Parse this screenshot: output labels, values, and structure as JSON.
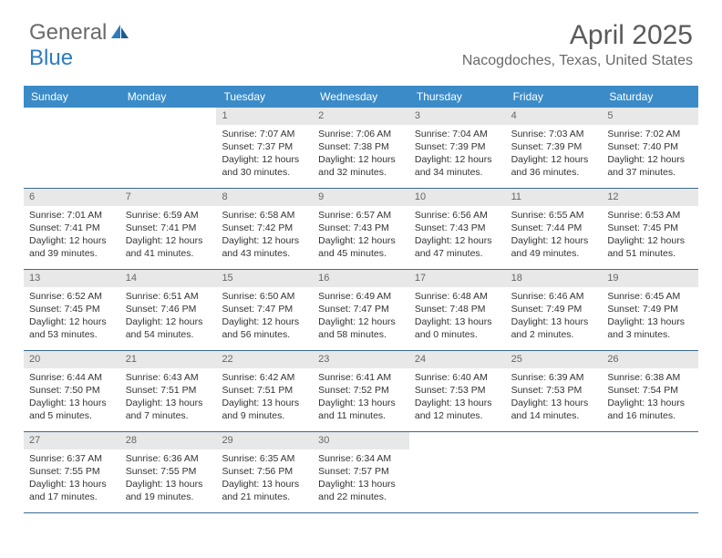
{
  "brand": {
    "text1": "General",
    "text2": "Blue"
  },
  "title": "April 2025",
  "location": "Nacogdoches, Texas, United States",
  "colors": {
    "header_bg": "#3b8bc8",
    "header_text": "#ffffff",
    "daybar_bg": "#e8e8e8",
    "daybar_text": "#666666",
    "row_border": "#3b6a8f",
    "body_text": "#333333",
    "title_text": "#5a5a5a",
    "location_text": "#6a6a6a",
    "logo_gray": "#6a6a6a",
    "logo_blue": "#2d7cc1"
  },
  "weekdays": [
    "Sunday",
    "Monday",
    "Tuesday",
    "Wednesday",
    "Thursday",
    "Friday",
    "Saturday"
  ],
  "weeks": [
    [
      null,
      null,
      {
        "n": "1",
        "sr": "Sunrise: 7:07 AM",
        "ss": "Sunset: 7:37 PM",
        "d1": "Daylight: 12 hours",
        "d2": "and 30 minutes."
      },
      {
        "n": "2",
        "sr": "Sunrise: 7:06 AM",
        "ss": "Sunset: 7:38 PM",
        "d1": "Daylight: 12 hours",
        "d2": "and 32 minutes."
      },
      {
        "n": "3",
        "sr": "Sunrise: 7:04 AM",
        "ss": "Sunset: 7:39 PM",
        "d1": "Daylight: 12 hours",
        "d2": "and 34 minutes."
      },
      {
        "n": "4",
        "sr": "Sunrise: 7:03 AM",
        "ss": "Sunset: 7:39 PM",
        "d1": "Daylight: 12 hours",
        "d2": "and 36 minutes."
      },
      {
        "n": "5",
        "sr": "Sunrise: 7:02 AM",
        "ss": "Sunset: 7:40 PM",
        "d1": "Daylight: 12 hours",
        "d2": "and 37 minutes."
      }
    ],
    [
      {
        "n": "6",
        "sr": "Sunrise: 7:01 AM",
        "ss": "Sunset: 7:41 PM",
        "d1": "Daylight: 12 hours",
        "d2": "and 39 minutes."
      },
      {
        "n": "7",
        "sr": "Sunrise: 6:59 AM",
        "ss": "Sunset: 7:41 PM",
        "d1": "Daylight: 12 hours",
        "d2": "and 41 minutes."
      },
      {
        "n": "8",
        "sr": "Sunrise: 6:58 AM",
        "ss": "Sunset: 7:42 PM",
        "d1": "Daylight: 12 hours",
        "d2": "and 43 minutes."
      },
      {
        "n": "9",
        "sr": "Sunrise: 6:57 AM",
        "ss": "Sunset: 7:43 PM",
        "d1": "Daylight: 12 hours",
        "d2": "and 45 minutes."
      },
      {
        "n": "10",
        "sr": "Sunrise: 6:56 AM",
        "ss": "Sunset: 7:43 PM",
        "d1": "Daylight: 12 hours",
        "d2": "and 47 minutes."
      },
      {
        "n": "11",
        "sr": "Sunrise: 6:55 AM",
        "ss": "Sunset: 7:44 PM",
        "d1": "Daylight: 12 hours",
        "d2": "and 49 minutes."
      },
      {
        "n": "12",
        "sr": "Sunrise: 6:53 AM",
        "ss": "Sunset: 7:45 PM",
        "d1": "Daylight: 12 hours",
        "d2": "and 51 minutes."
      }
    ],
    [
      {
        "n": "13",
        "sr": "Sunrise: 6:52 AM",
        "ss": "Sunset: 7:45 PM",
        "d1": "Daylight: 12 hours",
        "d2": "and 53 minutes."
      },
      {
        "n": "14",
        "sr": "Sunrise: 6:51 AM",
        "ss": "Sunset: 7:46 PM",
        "d1": "Daylight: 12 hours",
        "d2": "and 54 minutes."
      },
      {
        "n": "15",
        "sr": "Sunrise: 6:50 AM",
        "ss": "Sunset: 7:47 PM",
        "d1": "Daylight: 12 hours",
        "d2": "and 56 minutes."
      },
      {
        "n": "16",
        "sr": "Sunrise: 6:49 AM",
        "ss": "Sunset: 7:47 PM",
        "d1": "Daylight: 12 hours",
        "d2": "and 58 minutes."
      },
      {
        "n": "17",
        "sr": "Sunrise: 6:48 AM",
        "ss": "Sunset: 7:48 PM",
        "d1": "Daylight: 13 hours",
        "d2": "and 0 minutes."
      },
      {
        "n": "18",
        "sr": "Sunrise: 6:46 AM",
        "ss": "Sunset: 7:49 PM",
        "d1": "Daylight: 13 hours",
        "d2": "and 2 minutes."
      },
      {
        "n": "19",
        "sr": "Sunrise: 6:45 AM",
        "ss": "Sunset: 7:49 PM",
        "d1": "Daylight: 13 hours",
        "d2": "and 3 minutes."
      }
    ],
    [
      {
        "n": "20",
        "sr": "Sunrise: 6:44 AM",
        "ss": "Sunset: 7:50 PM",
        "d1": "Daylight: 13 hours",
        "d2": "and 5 minutes."
      },
      {
        "n": "21",
        "sr": "Sunrise: 6:43 AM",
        "ss": "Sunset: 7:51 PM",
        "d1": "Daylight: 13 hours",
        "d2": "and 7 minutes."
      },
      {
        "n": "22",
        "sr": "Sunrise: 6:42 AM",
        "ss": "Sunset: 7:51 PM",
        "d1": "Daylight: 13 hours",
        "d2": "and 9 minutes."
      },
      {
        "n": "23",
        "sr": "Sunrise: 6:41 AM",
        "ss": "Sunset: 7:52 PM",
        "d1": "Daylight: 13 hours",
        "d2": "and 11 minutes."
      },
      {
        "n": "24",
        "sr": "Sunrise: 6:40 AM",
        "ss": "Sunset: 7:53 PM",
        "d1": "Daylight: 13 hours",
        "d2": "and 12 minutes."
      },
      {
        "n": "25",
        "sr": "Sunrise: 6:39 AM",
        "ss": "Sunset: 7:53 PM",
        "d1": "Daylight: 13 hours",
        "d2": "and 14 minutes."
      },
      {
        "n": "26",
        "sr": "Sunrise: 6:38 AM",
        "ss": "Sunset: 7:54 PM",
        "d1": "Daylight: 13 hours",
        "d2": "and 16 minutes."
      }
    ],
    [
      {
        "n": "27",
        "sr": "Sunrise: 6:37 AM",
        "ss": "Sunset: 7:55 PM",
        "d1": "Daylight: 13 hours",
        "d2": "and 17 minutes."
      },
      {
        "n": "28",
        "sr": "Sunrise: 6:36 AM",
        "ss": "Sunset: 7:55 PM",
        "d1": "Daylight: 13 hours",
        "d2": "and 19 minutes."
      },
      {
        "n": "29",
        "sr": "Sunrise: 6:35 AM",
        "ss": "Sunset: 7:56 PM",
        "d1": "Daylight: 13 hours",
        "d2": "and 21 minutes."
      },
      {
        "n": "30",
        "sr": "Sunrise: 6:34 AM",
        "ss": "Sunset: 7:57 PM",
        "d1": "Daylight: 13 hours",
        "d2": "and 22 minutes."
      },
      null,
      null,
      null
    ]
  ]
}
